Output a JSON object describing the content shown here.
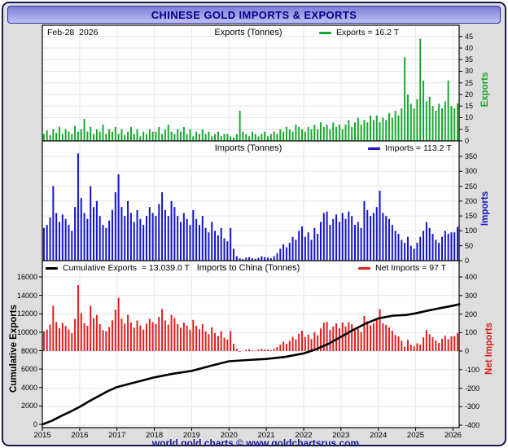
{
  "window": {
    "title": "CHINESE GOLD IMPORTS & EXPORTS",
    "footer": "world gold charts © www.goldchartsrus.com"
  },
  "colors": {
    "exports": "#17a82f",
    "imports": "#1414c8",
    "net_imports": "#e01e1e",
    "cumulative_line": "#000000",
    "grid": "#e1e6f0",
    "title_text": "#00008b",
    "footer_text": "#16169b"
  },
  "x_axis": {
    "start": "2015-01",
    "end": "2026-02",
    "year_ticks": [
      2015,
      2016,
      2017,
      2018,
      2019,
      2020,
      2021,
      2022,
      2023,
      2024,
      2025,
      2026
    ]
  },
  "chart_data": [
    {
      "id": "exports",
      "type": "bar",
      "title": "Exports (Tonnes)",
      "corner_label": "Feb-28  2026",
      "legend": "Exports = 16.2 T",
      "axis_label": "Exports",
      "ylim": [
        0,
        47
      ],
      "yticks": [
        0,
        5,
        10,
        15,
        20,
        25,
        30,
        35,
        40,
        45
      ],
      "unit": "tonnes per month",
      "values": [
        3,
        4.5,
        2.5,
        5,
        3.5,
        6,
        3,
        5,
        4,
        3,
        6.5,
        4,
        5,
        9.5,
        4,
        6,
        3,
        5,
        4,
        7,
        3,
        5,
        4,
        6,
        3,
        5,
        2.5,
        4,
        6,
        3,
        5,
        2,
        4,
        3,
        5,
        4,
        4,
        6,
        3,
        5,
        7,
        4,
        3,
        5,
        4,
        6,
        3,
        5,
        2,
        4,
        3,
        5,
        3,
        4,
        2,
        3,
        4,
        2,
        3,
        3,
        2,
        1.5,
        3,
        13,
        4,
        3,
        2,
        4,
        3,
        2,
        3,
        4,
        2,
        3,
        4,
        3,
        5,
        4,
        6,
        5,
        4,
        7,
        6,
        5,
        4,
        6,
        5,
        7,
        5,
        8,
        6,
        7,
        5,
        8,
        6,
        7,
        5,
        7,
        9,
        6,
        8,
        10,
        7,
        9,
        8,
        11,
        9,
        11,
        8,
        10,
        9,
        12,
        10,
        13,
        11,
        14,
        36,
        20,
        16,
        14,
        18,
        44,
        26,
        17,
        19,
        15,
        13,
        16,
        14,
        17,
        26,
        15,
        14,
        16.2
      ]
    },
    {
      "id": "imports",
      "type": "bar",
      "title": "Imports (Tonnes)",
      "legend": "Imports = 113.2 T",
      "axis_label": "Imports",
      "ylim": [
        0,
        390
      ],
      "yticks": [
        0,
        50,
        100,
        150,
        200,
        250,
        300,
        350
      ],
      "unit": "tonnes per month",
      "values": [
        110,
        120,
        145,
        250,
        160,
        130,
        155,
        140,
        120,
        100,
        180,
        360,
        210,
        160,
        140,
        250,
        180,
        200,
        150,
        120,
        110,
        135,
        170,
        230,
        290,
        180,
        150,
        200,
        160,
        130,
        170,
        140,
        120,
        150,
        180,
        160,
        150,
        190,
        230,
        170,
        150,
        200,
        180,
        150,
        130,
        160,
        140,
        120,
        170,
        140,
        120,
        150,
        110,
        95,
        130,
        100,
        85,
        110,
        75,
        65,
        110,
        40,
        15,
        8,
        5,
        10,
        12,
        8,
        6,
        10,
        15,
        12,
        10,
        8,
        15,
        25,
        40,
        55,
        45,
        60,
        80,
        70,
        100,
        115,
        80,
        95,
        70,
        110,
        90,
        130,
        160,
        165,
        120,
        140,
        155,
        130,
        160,
        140,
        165,
        150,
        120,
        130,
        110,
        200,
        170,
        150,
        160,
        180,
        235,
        160,
        150,
        140,
        120,
        100,
        90,
        70,
        60,
        80,
        50,
        40,
        60,
        80,
        100,
        130,
        110,
        90,
        70,
        60,
        80,
        100,
        90,
        95,
        95,
        113.2
      ]
    },
    {
      "id": "imports_to_china",
      "type": "bar+line",
      "title": "Imports to China (Tonnes)",
      "legend_bar": "Net Imports = 97 T",
      "legend_line": "Cumulative Exports  = 13,039.0 T",
      "axis_label_right": "Net Imports",
      "axis_label_left": "Cumulative Exports",
      "right_ylim": [
        -440,
        440
      ],
      "right_yticks": [
        400,
        300,
        200,
        100,
        0,
        -100,
        -200,
        -300,
        -400
      ],
      "left_ylim": [
        0,
        16400
      ],
      "left_yticks": [
        0,
        2000,
        4000,
        6000,
        8000,
        10000,
        12000,
        14000,
        16000
      ],
      "unit": "tonnes per month (bars, right axis) / cumulative tonnes (line, left axis)",
      "bar_values": [
        107,
        116,
        143,
        245,
        157,
        124,
        152,
        135,
        116,
        97,
        174,
        356,
        205,
        151,
        136,
        244,
        177,
        195,
        146,
        113,
        107,
        130,
        166,
        224,
        287,
        175,
        148,
        196,
        154,
        127,
        165,
        138,
        116,
        147,
        175,
        156,
        146,
        184,
        227,
        165,
        143,
        196,
        177,
        145,
        126,
        154,
        137,
        115,
        168,
        136,
        117,
        145,
        107,
        91,
        128,
        97,
        81,
        108,
        72,
        62,
        108,
        39,
        12,
        -5,
        1,
        7,
        10,
        4,
        3,
        8,
        12,
        8,
        8,
        5,
        11,
        22,
        35,
        51,
        39,
        55,
        76,
        63,
        94,
        110,
        76,
        89,
        65,
        103,
        85,
        122,
        154,
        158,
        115,
        132,
        149,
        123,
        155,
        133,
        156,
        144,
        112,
        120,
        103,
        189,
        162,
        139,
        151,
        169,
        227,
        150,
        141,
        128,
        110,
        87,
        79,
        56,
        24,
        60,
        34,
        26,
        42,
        36,
        74,
        113,
        91,
        75,
        57,
        44,
        66,
        83,
        64,
        80,
        81,
        97
      ],
      "line_points": [
        [
          2015.0,
          0
        ],
        [
          2015.25,
          380
        ],
        [
          2015.5,
          900
        ],
        [
          2015.75,
          1380
        ],
        [
          2016.0,
          1900
        ],
        [
          2016.25,
          2500
        ],
        [
          2016.5,
          3050
        ],
        [
          2016.75,
          3600
        ],
        [
          2017.0,
          4050
        ],
        [
          2017.33,
          4400
        ],
        [
          2017.67,
          4750
        ],
        [
          2018.0,
          5100
        ],
        [
          2018.5,
          5500
        ],
        [
          2019.0,
          5800
        ],
        [
          2019.5,
          6350
        ],
        [
          2020.0,
          6850
        ],
        [
          2020.5,
          6980
        ],
        [
          2021.0,
          7100
        ],
        [
          2021.5,
          7320
        ],
        [
          2022.0,
          7700
        ],
        [
          2022.33,
          8150
        ],
        [
          2022.67,
          8750
        ],
        [
          2023.0,
          9500
        ],
        [
          2023.33,
          10250
        ],
        [
          2023.67,
          10950
        ],
        [
          2024.0,
          11500
        ],
        [
          2024.4,
          11800
        ],
        [
          2024.75,
          11870
        ],
        [
          2025.0,
          12050
        ],
        [
          2025.33,
          12350
        ],
        [
          2025.67,
          12620
        ],
        [
          2026.0,
          12880
        ],
        [
          2026.17,
          13039
        ]
      ]
    }
  ]
}
